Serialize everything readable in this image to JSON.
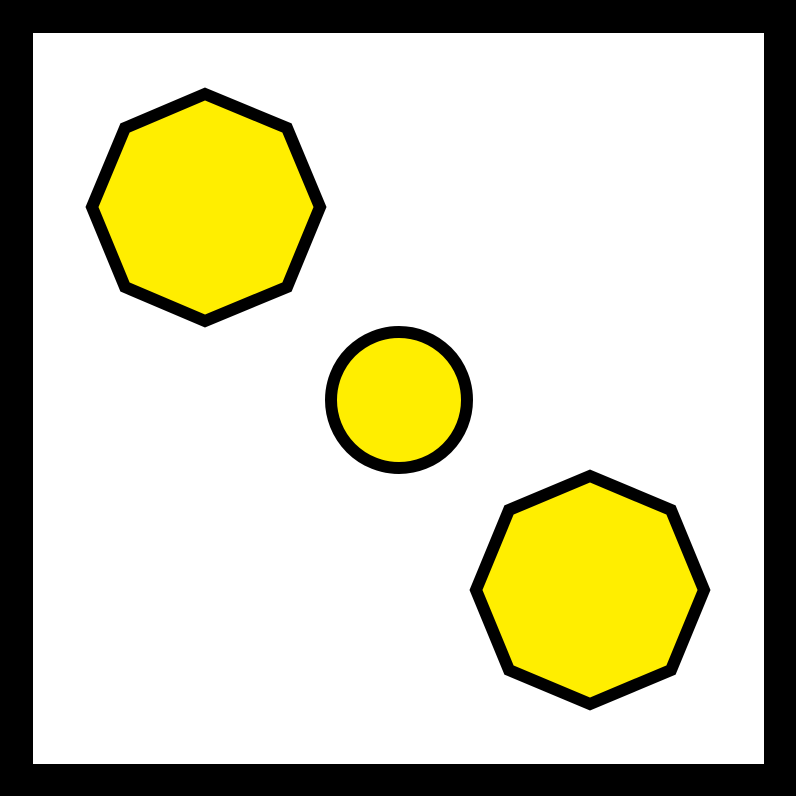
{
  "colors": {
    "frame": "#000000",
    "background": "#ffffff",
    "fill": "#ffee00",
    "stroke": "#000000"
  },
  "shapes": [
    {
      "kind": "octagon",
      "fill": "#ffee00",
      "stroke": "#000000"
    },
    {
      "kind": "circle",
      "fill": "#ffee00",
      "stroke": "#000000"
    },
    {
      "kind": "octagon",
      "fill": "#ffee00",
      "stroke": "#000000"
    }
  ]
}
